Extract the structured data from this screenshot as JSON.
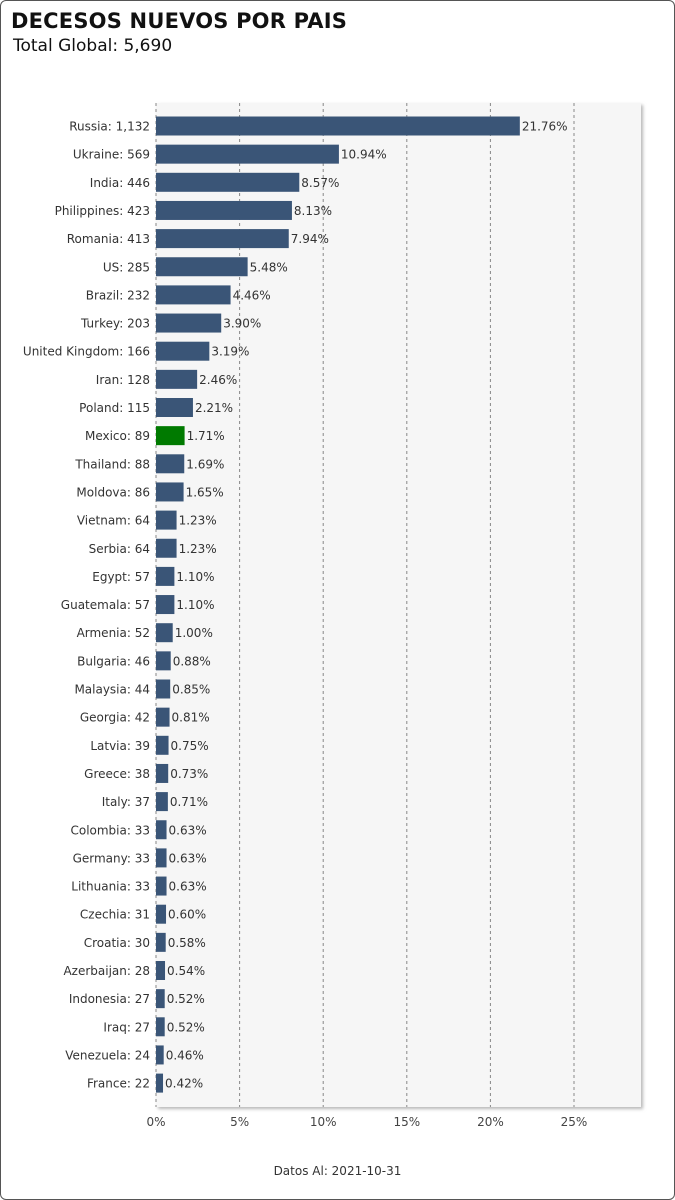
{
  "header": {
    "title": "DECESOS NUEVOS POR PAIS",
    "subtitle": "Total Global: 5,690"
  },
  "footer": {
    "text": "Datos Al: 2021-10-31"
  },
  "colors": {
    "bar": "#3a5577",
    "highlight": "#007a00",
    "plot_bg": "#f6f6f6",
    "grid": "#888888"
  },
  "chart_data": {
    "type": "bar",
    "orientation": "horizontal",
    "highlight": "Mexico",
    "categories": [
      "Russia",
      "Ukraine",
      "India",
      "Philippines",
      "Romania",
      "US",
      "Brazil",
      "Turkey",
      "United Kingdom",
      "Iran",
      "Poland",
      "Mexico",
      "Thailand",
      "Moldova",
      "Vietnam",
      "Serbia",
      "Egypt",
      "Guatemala",
      "Armenia",
      "Bulgaria",
      "Malaysia",
      "Georgia",
      "Latvia",
      "Greece",
      "Italy",
      "Colombia",
      "Germany",
      "Lithuania",
      "Czechia",
      "Croatia",
      "Azerbaijan",
      "Indonesia",
      "Iraq",
      "Venezuela",
      "France"
    ],
    "deaths": [
      "1,132",
      "569",
      "446",
      "423",
      "413",
      "285",
      "232",
      "203",
      "166",
      "128",
      "115",
      "89",
      "88",
      "86",
      "64",
      "64",
      "57",
      "57",
      "52",
      "46",
      "44",
      "42",
      "39",
      "38",
      "37",
      "33",
      "33",
      "33",
      "31",
      "30",
      "28",
      "27",
      "27",
      "24",
      "22"
    ],
    "values": [
      21.76,
      10.94,
      8.57,
      8.13,
      7.94,
      5.48,
      4.46,
      3.9,
      3.19,
      2.46,
      2.21,
      1.71,
      1.69,
      1.65,
      1.23,
      1.23,
      1.1,
      1.1,
      1.0,
      0.88,
      0.85,
      0.81,
      0.75,
      0.73,
      0.71,
      0.63,
      0.63,
      0.63,
      0.6,
      0.58,
      0.54,
      0.52,
      0.52,
      0.46,
      0.42
    ],
    "value_labels": [
      "21.76%",
      "10.94%",
      "8.57%",
      "8.13%",
      "7.94%",
      "5.48%",
      "4.46%",
      "3.90%",
      "3.19%",
      "2.46%",
      "2.21%",
      "1.71%",
      "1.69%",
      "1.65%",
      "1.23%",
      "1.23%",
      "1.10%",
      "1.10%",
      "1.00%",
      "0.88%",
      "0.85%",
      "0.81%",
      "0.75%",
      "0.73%",
      "0.71%",
      "0.63%",
      "0.63%",
      "0.63%",
      "0.60%",
      "0.58%",
      "0.54%",
      "0.52%",
      "0.52%",
      "0.46%",
      "0.42%"
    ],
    "xticks": [
      0,
      5,
      10,
      15,
      20,
      25
    ],
    "xtick_labels": [
      "0%",
      "5%",
      "10%",
      "15%",
      "20%",
      "25%"
    ],
    "xlim": [
      0,
      29
    ],
    "grid": true
  }
}
